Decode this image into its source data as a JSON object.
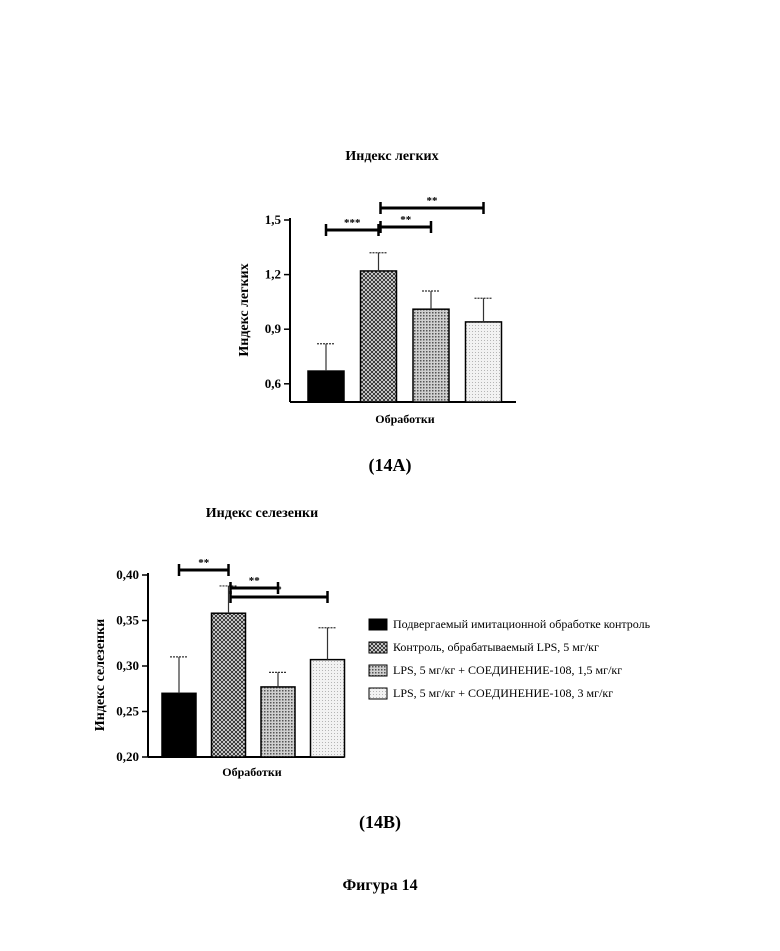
{
  "chart_data": [
    {
      "type": "bar",
      "title": "Индекс легких",
      "xlabel": "Обработки",
      "ylabel": "Индекс легких",
      "ylim": [
        0.5,
        1.5
      ],
      "yticks": [
        "1,5",
        "1,2",
        "0,9",
        "0,6"
      ],
      "ytick_values": [
        1.5,
        1.2,
        0.9,
        0.6
      ],
      "panel_label": "(14A)",
      "series": [
        {
          "name": "Подвергаемый имитационной обработке контроль",
          "value": 0.67,
          "error": 0.15,
          "fill": "solid"
        },
        {
          "name": "Контроль, обрабатываемый LPS, 5 мг/кг",
          "value": 1.22,
          "error": 0.1,
          "fill": "crosshatch"
        },
        {
          "name": "LPS, 5 мг/кг + СОЕДИНЕНИЕ-108, 1,5 мг/кг",
          "value": 1.01,
          "error": 0.1,
          "fill": "dots"
        },
        {
          "name": "LPS, 5 мг/кг + СОЕДИНЕНИЕ-108, 3 мг/кг",
          "value": 0.94,
          "error": 0.13,
          "fill": "light"
        }
      ],
      "significance": [
        {
          "from": 0,
          "to": 1,
          "label": "***"
        },
        {
          "from": 1,
          "to": 2,
          "label": "**"
        },
        {
          "from": 1,
          "to": 3,
          "label": "**"
        }
      ]
    },
    {
      "type": "bar",
      "title": "Индекс селезенки",
      "xlabel": "Обработки",
      "ylabel": "Индекс селезенки",
      "ylim": [
        0.2,
        0.4
      ],
      "yticks": [
        "0,40",
        "0,35",
        "0,30",
        "0,25",
        "0,20"
      ],
      "ytick_values": [
        0.4,
        0.35,
        0.3,
        0.25,
        0.2
      ],
      "panel_label": "(14B)",
      "series": [
        {
          "name": "Подвергаемый имитационной обработке контроль",
          "value": 0.27,
          "error": 0.04,
          "fill": "solid"
        },
        {
          "name": "Контроль, обрабатываемый LPS, 5 мг/кг",
          "value": 0.358,
          "error": 0.03,
          "fill": "crosshatch"
        },
        {
          "name": "LPS, 5 мг/кг + СОЕДИНЕНИЕ-108, 1,5 мг/кг",
          "value": 0.277,
          "error": 0.016,
          "fill": "dots"
        },
        {
          "name": "LPS, 5 мг/кг + СОЕДИНЕНИЕ-108, 3 мг/кг",
          "value": 0.307,
          "error": 0.035,
          "fill": "light"
        }
      ],
      "significance": [
        {
          "from": 0,
          "to": 1,
          "label": "**"
        },
        {
          "from": 1,
          "to": 2,
          "label": "**"
        },
        {
          "from": 1,
          "to": 3,
          "label": "*"
        }
      ],
      "legend_position": "right"
    }
  ],
  "figure_caption": "Фигура 14",
  "colors": {
    "solid": "#000000",
    "crosshatch": "#6a6a6a",
    "dots": "#9a9a9a",
    "light": "#d8d8d8"
  }
}
